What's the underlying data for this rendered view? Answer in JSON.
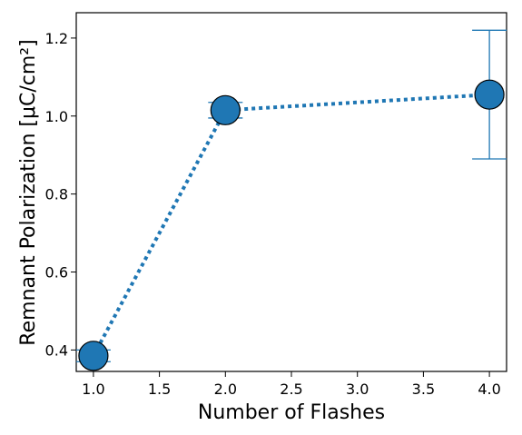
{
  "chart_data": {
    "type": "scatter",
    "title": "",
    "xlabel": "Number of Flashes",
    "ylabel": "Remnant Polarization [μC/cm²]",
    "xlim": [
      0.87,
      4.13
    ],
    "ylim": [
      0.345,
      1.265
    ],
    "x_ticks": [
      1.0,
      1.5,
      2.0,
      2.5,
      3.0,
      3.5,
      4.0
    ],
    "x_tick_labels": [
      "1.0",
      "1.5",
      "2.0",
      "2.5",
      "3.0",
      "3.5",
      "4.0"
    ],
    "y_ticks": [
      0.4,
      0.6,
      0.8,
      1.0,
      1.2
    ],
    "y_tick_labels": [
      "0.4",
      "0.6",
      "0.8",
      "1.0",
      "1.2"
    ],
    "grid": false,
    "line_style": "dotted",
    "color": "#1f77b4",
    "series": [
      {
        "points": [
          {
            "x": 1.0,
            "y": 0.385,
            "err_low": 0.37,
            "err_high": 0.4
          },
          {
            "x": 2.0,
            "y": 1.015,
            "err_low": 0.995,
            "err_high": 1.035
          },
          {
            "x": 4.0,
            "y": 1.055,
            "err_low": 0.89,
            "err_high": 1.22
          }
        ]
      }
    ]
  }
}
